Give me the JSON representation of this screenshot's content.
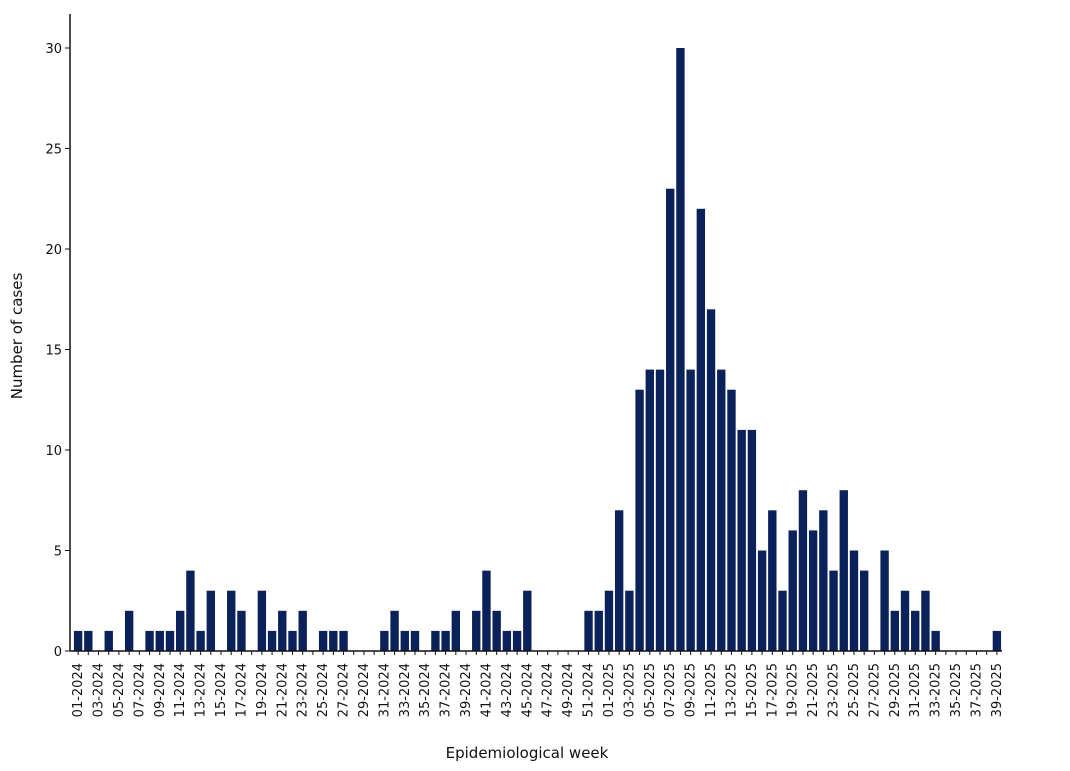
{
  "chart_data": {
    "type": "bar",
    "xlabel": "Epidemiological week",
    "ylabel": "Number of cases",
    "ylim": [
      0,
      31
    ],
    "yticks": [
      0,
      5,
      10,
      15,
      20,
      25,
      30
    ],
    "grid": false,
    "bar_color": "#0a2159",
    "categories": [
      "01-2024",
      "02-2024",
      "03-2024",
      "04-2024",
      "05-2024",
      "06-2024",
      "07-2024",
      "08-2024",
      "09-2024",
      "10-2024",
      "11-2024",
      "12-2024",
      "13-2024",
      "14-2024",
      "15-2024",
      "16-2024",
      "17-2024",
      "18-2024",
      "19-2024",
      "20-2024",
      "21-2024",
      "22-2024",
      "23-2024",
      "24-2024",
      "25-2024",
      "26-2024",
      "27-2024",
      "28-2024",
      "29-2024",
      "30-2024",
      "31-2024",
      "32-2024",
      "33-2024",
      "34-2024",
      "35-2024",
      "36-2024",
      "37-2024",
      "38-2024",
      "39-2024",
      "40-2024",
      "41-2024",
      "42-2024",
      "43-2024",
      "44-2024",
      "45-2024",
      "46-2024",
      "47-2024",
      "48-2024",
      "49-2024",
      "50-2024",
      "51-2024",
      "52-2024",
      "01-2025",
      "02-2025",
      "03-2025",
      "04-2025",
      "05-2025",
      "06-2025",
      "07-2025",
      "08-2025",
      "09-2025",
      "10-2025",
      "11-2025",
      "12-2025",
      "13-2025",
      "14-2025",
      "15-2025",
      "16-2025",
      "17-2025",
      "18-2025",
      "19-2025",
      "20-2025",
      "21-2025",
      "22-2025",
      "23-2025",
      "24-2025",
      "25-2025",
      "26-2025",
      "27-2025",
      "28-2025",
      "29-2025",
      "30-2025",
      "31-2025",
      "32-2025",
      "33-2025",
      "34-2025",
      "35-2025",
      "36-2025",
      "37-2025",
      "38-2025",
      "39-2025"
    ],
    "xticklabels": [
      "01-2024",
      "03-2024",
      "05-2024",
      "07-2024",
      "09-2024",
      "11-2024",
      "13-2024",
      "15-2024",
      "17-2024",
      "19-2024",
      "21-2024",
      "23-2024",
      "25-2024",
      "27-2024",
      "29-2024",
      "31-2024",
      "33-2024",
      "35-2024",
      "37-2024",
      "39-2024",
      "41-2024",
      "43-2024",
      "45-2024",
      "47-2024",
      "49-2024",
      "51-2024",
      "01-2025",
      "03-2025",
      "05-2025",
      "07-2025",
      "09-2025",
      "11-2025",
      "13-2025",
      "15-2025",
      "17-2025",
      "19-2025",
      "21-2025",
      "23-2025",
      "25-2025",
      "27-2025",
      "29-2025",
      "31-2025",
      "33-2025",
      "35-2025",
      "37-2025",
      "39-2025"
    ],
    "values": [
      1,
      1,
      0,
      1,
      0,
      2,
      0,
      1,
      1,
      1,
      2,
      4,
      1,
      3,
      0,
      3,
      2,
      0,
      3,
      1,
      2,
      1,
      2,
      0,
      1,
      1,
      1,
      0,
      0,
      0,
      1,
      2,
      1,
      1,
      0,
      1,
      1,
      2,
      0,
      2,
      4,
      2,
      1,
      1,
      3,
      0,
      0,
      0,
      0,
      0,
      2,
      2,
      3,
      7,
      3,
      13,
      14,
      14,
      23,
      30,
      14,
      22,
      17,
      14,
      13,
      11,
      11,
      5,
      7,
      3,
      6,
      8,
      6,
      7,
      4,
      8,
      5,
      4,
      0,
      5,
      2,
      3,
      2,
      3,
      1,
      0,
      0,
      0,
      0,
      0,
      1
    ]
  }
}
